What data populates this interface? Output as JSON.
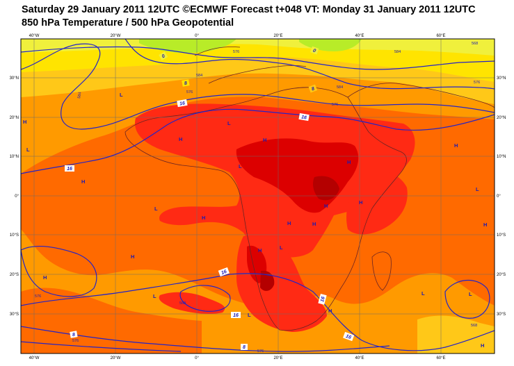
{
  "title_line1": "Saturday 29 January 2011 12UTC ©ECMWF Forecast t+048 VT: Monday 31 January 2011 12UTC",
  "title_line2": "850 hPa Temperature / 500 hPa Geopotential",
  "lon_labels": [
    "40°W",
    "20°W",
    "0°",
    "20°E",
    "40°E",
    "60°E"
  ],
  "lat_labels": [
    "30°N",
    "20°N",
    "10°N",
    "0°",
    "10°S",
    "20°S",
    "30°S"
  ],
  "pressure_centers": [
    "L",
    "H",
    "L",
    "H",
    "H",
    "L",
    "H",
    "L",
    "H",
    "H",
    "H",
    "L",
    "H",
    "H",
    "H",
    "L",
    "H",
    "L",
    "H",
    "L",
    "H",
    "L",
    "H",
    "H",
    "L",
    "H",
    "L",
    "H"
  ],
  "temp_contour_labels": [
    "0",
    "0",
    "8",
    "8",
    "16",
    "16",
    "16",
    "16",
    "16",
    "16",
    "16",
    "8",
    "8"
  ],
  "geopotential_labels": [
    "576",
    "584",
    "576",
    "584",
    "576",
    "584",
    "576",
    "568",
    "584",
    "576",
    "568",
    "568",
    "576",
    "576"
  ],
  "colors": {
    "contour": "#2323c8",
    "coast": "#6a2424",
    "t_ge_28": "#b40000",
    "t_24_28": "#dc0000",
    "t_20_24": "#ff2a14",
    "t_16_20": "#ff6a00",
    "t_12_16": "#ff9a00",
    "t_8_12": "#ffc818",
    "t_4_8": "#ffe400",
    "t_0_4": "#f0f03c",
    "t_lt_0": "#b8ec28"
  }
}
